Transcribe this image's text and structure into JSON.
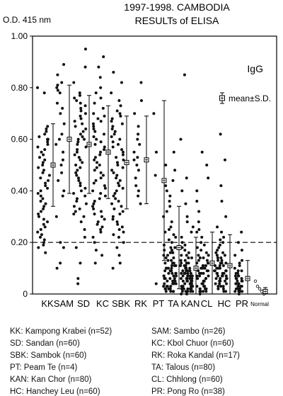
{
  "chart_data": {
    "type": "scatter",
    "title": "1997-1998. CAMBODIA",
    "subtitle": "RESULTs of ELISA",
    "ylabel": "O.D. 415 nm",
    "panel_label": "IgG",
    "mean_legend": "mean±S.D.",
    "ylim": [
      0,
      1.0
    ],
    "yticks": [
      "0",
      "0.20",
      "0.40",
      "0.60",
      "0.80",
      "1.00"
    ],
    "cutoff": 0.2,
    "groups": [
      {
        "code": "KK",
        "label": "KK",
        "n": 52,
        "mean": 0.5,
        "sd": 0.16,
        "points": [
          0.8,
          0.78,
          0.65,
          0.64,
          0.63,
          0.62,
          0.61,
          0.6,
          0.6,
          0.59,
          0.58,
          0.57,
          0.56,
          0.55,
          0.54,
          0.53,
          0.52,
          0.51,
          0.5,
          0.49,
          0.48,
          0.47,
          0.46,
          0.45,
          0.44,
          0.43,
          0.42,
          0.41,
          0.4,
          0.39,
          0.38,
          0.37,
          0.36,
          0.35,
          0.34,
          0.33,
          0.32,
          0.31,
          0.3,
          0.29,
          0.28,
          0.27,
          0.26,
          0.25,
          0.24,
          0.23,
          0.22,
          0.21,
          0.2,
          0.19,
          0.18,
          0.16
        ]
      },
      {
        "code": "SAM",
        "label": "SAM",
        "n": 26,
        "mean": 0.6,
        "sd": 0.21,
        "points": [
          0.89,
          0.85,
          0.82,
          0.81,
          0.8,
          0.79,
          0.78,
          0.74,
          0.72,
          0.7,
          0.66,
          0.62,
          0.6,
          0.58,
          0.55,
          0.52,
          0.5,
          0.47,
          0.44,
          0.4,
          0.38,
          0.3,
          0.2,
          0.18,
          0.12,
          0.1
        ]
      },
      {
        "code": "SD",
        "label": "SD",
        "n": 60,
        "mean": 0.58,
        "sd": 0.19,
        "points": [
          0.95,
          0.88,
          0.82,
          0.78,
          0.77,
          0.76,
          0.75,
          0.74,
          0.73,
          0.72,
          0.71,
          0.7,
          0.69,
          0.68,
          0.67,
          0.66,
          0.65,
          0.64,
          0.63,
          0.62,
          0.61,
          0.6,
          0.6,
          0.59,
          0.58,
          0.57,
          0.56,
          0.55,
          0.54,
          0.53,
          0.52,
          0.51,
          0.5,
          0.49,
          0.48,
          0.47,
          0.46,
          0.45,
          0.44,
          0.43,
          0.42,
          0.41,
          0.4,
          0.39,
          0.38,
          0.37,
          0.36,
          0.35,
          0.34,
          0.33,
          0.32,
          0.31,
          0.3,
          0.28,
          0.25,
          0.22,
          0.18,
          0.12,
          0.06,
          0.04
        ]
      },
      {
        "code": "KC",
        "label": "KC",
        "n": 60,
        "mean": 0.55,
        "sd": 0.18,
        "points": [
          0.92,
          0.88,
          0.84,
          0.8,
          0.78,
          0.76,
          0.74,
          0.72,
          0.7,
          0.69,
          0.68,
          0.67,
          0.66,
          0.65,
          0.64,
          0.63,
          0.62,
          0.61,
          0.6,
          0.59,
          0.58,
          0.57,
          0.56,
          0.55,
          0.54,
          0.53,
          0.52,
          0.51,
          0.5,
          0.49,
          0.48,
          0.47,
          0.46,
          0.45,
          0.44,
          0.43,
          0.42,
          0.41,
          0.4,
          0.39,
          0.38,
          0.37,
          0.36,
          0.35,
          0.34,
          0.33,
          0.32,
          0.31,
          0.3,
          0.29,
          0.28,
          0.27,
          0.26,
          0.25,
          0.24,
          0.22,
          0.2,
          0.17,
          0.15,
          0.12
        ]
      },
      {
        "code": "SBK",
        "label": "SBK",
        "n": 60,
        "mean": 0.51,
        "sd": 0.18,
        "points": [
          0.86,
          0.82,
          0.78,
          0.75,
          0.73,
          0.71,
          0.7,
          0.69,
          0.68,
          0.67,
          0.66,
          0.65,
          0.64,
          0.63,
          0.62,
          0.61,
          0.6,
          0.59,
          0.58,
          0.57,
          0.56,
          0.55,
          0.54,
          0.53,
          0.52,
          0.51,
          0.5,
          0.49,
          0.48,
          0.47,
          0.46,
          0.45,
          0.44,
          0.43,
          0.42,
          0.41,
          0.4,
          0.39,
          0.38,
          0.37,
          0.36,
          0.35,
          0.34,
          0.33,
          0.32,
          0.31,
          0.3,
          0.29,
          0.28,
          0.27,
          0.26,
          0.25,
          0.24,
          0.23,
          0.22,
          0.2,
          0.18,
          0.15,
          0.12,
          0.1
        ]
      },
      {
        "code": "RK",
        "label": "RK",
        "n": 17,
        "mean": 0.52,
        "sd": 0.17,
        "points": [
          0.82,
          0.75,
          0.7,
          0.65,
          0.62,
          0.6,
          0.58,
          0.55,
          0.53,
          0.52,
          0.5,
          0.48,
          0.45,
          0.42,
          0.4,
          0.38,
          0.35
        ]
      },
      {
        "code": "PT",
        "label": "PT",
        "n": 4,
        "mean": 0.44,
        "sd": 0.31,
        "points": [
          0.7,
          0.55,
          0.46,
          0.04
        ]
      },
      {
        "code": "TA",
        "label": "TA",
        "n": 80,
        "mean": 0.18,
        "sd": 0.16,
        "points": [
          0.55,
          0.5,
          0.48,
          0.44,
          0.42,
          0.4,
          0.38,
          0.36,
          0.34,
          0.32,
          0.3,
          0.28,
          0.26,
          0.25,
          0.24,
          0.23,
          0.22,
          0.21,
          0.2,
          0.19,
          0.18,
          0.18,
          0.17,
          0.17,
          0.16,
          0.16,
          0.15,
          0.15,
          0.14,
          0.14,
          0.13,
          0.13,
          0.12,
          0.12,
          0.12,
          0.11,
          0.11,
          0.11,
          0.1,
          0.1,
          0.1,
          0.1,
          0.09,
          0.09,
          0.09,
          0.09,
          0.08,
          0.08,
          0.08,
          0.08,
          0.07,
          0.07,
          0.07,
          0.07,
          0.06,
          0.06,
          0.06,
          0.06,
          0.05,
          0.05,
          0.05,
          0.05,
          0.04,
          0.04,
          0.04,
          0.04,
          0.03,
          0.03,
          0.03,
          0.03,
          0.02,
          0.02,
          0.02,
          0.02,
          0.02,
          0.01,
          0.01,
          0.01,
          0.01,
          0.01
        ]
      },
      {
        "code": "KAN",
        "label": "KAN",
        "n": 80,
        "mean": 0.1,
        "sd": 0.12,
        "points": [
          0.85,
          0.6,
          0.45,
          0.4,
          0.35,
          0.3,
          0.28,
          0.26,
          0.24,
          0.22,
          0.2,
          0.19,
          0.18,
          0.17,
          0.16,
          0.15,
          0.15,
          0.14,
          0.14,
          0.13,
          0.13,
          0.12,
          0.12,
          0.12,
          0.11,
          0.11,
          0.11,
          0.1,
          0.1,
          0.1,
          0.1,
          0.09,
          0.09,
          0.09,
          0.09,
          0.08,
          0.08,
          0.08,
          0.08,
          0.08,
          0.07,
          0.07,
          0.07,
          0.07,
          0.07,
          0.06,
          0.06,
          0.06,
          0.06,
          0.06,
          0.05,
          0.05,
          0.05,
          0.05,
          0.05,
          0.04,
          0.04,
          0.04,
          0.04,
          0.04,
          0.03,
          0.03,
          0.03,
          0.03,
          0.03,
          0.02,
          0.02,
          0.02,
          0.02,
          0.02,
          0.02,
          0.01,
          0.01,
          0.01,
          0.01,
          0.01,
          0.01,
          0.01,
          0.0,
          0.0
        ]
      },
      {
        "code": "CL",
        "label": "CL",
        "n": 60,
        "mean": 0.12,
        "sd": 0.12,
        "points": [
          0.55,
          0.5,
          0.45,
          0.4,
          0.36,
          0.32,
          0.28,
          0.25,
          0.24,
          0.22,
          0.2,
          0.19,
          0.18,
          0.17,
          0.16,
          0.15,
          0.15,
          0.14,
          0.14,
          0.13,
          0.13,
          0.12,
          0.12,
          0.12,
          0.11,
          0.11,
          0.11,
          0.1,
          0.1,
          0.1,
          0.09,
          0.09,
          0.09,
          0.08,
          0.08,
          0.08,
          0.07,
          0.07,
          0.07,
          0.06,
          0.06,
          0.06,
          0.05,
          0.05,
          0.05,
          0.04,
          0.04,
          0.04,
          0.03,
          0.03,
          0.03,
          0.02,
          0.02,
          0.02,
          0.02,
          0.01,
          0.01,
          0.01,
          0.01,
          0.0
        ]
      },
      {
        "code": "HC",
        "label": "HC",
        "n": 60,
        "mean": 0.11,
        "sd": 0.12,
        "points": [
          0.62,
          0.52,
          0.42,
          0.36,
          0.3,
          0.26,
          0.24,
          0.22,
          0.21,
          0.2,
          0.19,
          0.18,
          0.17,
          0.16,
          0.16,
          0.15,
          0.15,
          0.14,
          0.14,
          0.13,
          0.13,
          0.12,
          0.12,
          0.12,
          0.11,
          0.11,
          0.11,
          0.1,
          0.1,
          0.1,
          0.1,
          0.09,
          0.09,
          0.09,
          0.09,
          0.08,
          0.08,
          0.08,
          0.08,
          0.07,
          0.07,
          0.07,
          0.07,
          0.06,
          0.06,
          0.06,
          0.06,
          0.05,
          0.05,
          0.05,
          0.04,
          0.04,
          0.04,
          0.03,
          0.03,
          0.03,
          0.02,
          0.02,
          0.01,
          0.01
        ]
      },
      {
        "code": "PR",
        "label": "PR",
        "n": 38,
        "mean": 0.06,
        "sd": 0.07,
        "points": [
          0.24,
          0.2,
          0.17,
          0.15,
          0.13,
          0.12,
          0.11,
          0.1,
          0.09,
          0.09,
          0.08,
          0.08,
          0.07,
          0.07,
          0.07,
          0.06,
          0.06,
          0.06,
          0.05,
          0.05,
          0.05,
          0.04,
          0.04,
          0.04,
          0.04,
          0.03,
          0.03,
          0.03,
          0.03,
          0.02,
          0.02,
          0.02,
          0.02,
          0.01,
          0.01,
          0.01,
          0.01,
          0.0
        ]
      },
      {
        "code": "Normal",
        "label": "Normal",
        "n": null,
        "mean": 0.01,
        "sd": 0.015,
        "points": [
          0.05,
          0.03,
          0.02,
          0.01,
          0.0
        ],
        "open_markers": true
      }
    ],
    "legend_entries": [
      "KK: Kampong Krabei (n=52)",
      "SAM: Sambo (n=26)",
      "SD: Sandan (n=60)",
      "KC: Kbol Chuor (n=60)",
      "SBK: Sambok (n=60)",
      "RK: Roka Kandal (n=17)",
      "PT: Peam Te (n=4)",
      "TA: Talous (n=80)",
      "KAN: Kan Chor (n=80)",
      "CL: Chhlong (n=60)",
      "HC: Hanchey Leu (n=60)",
      "PR: Pong Ro (n=38)"
    ]
  }
}
